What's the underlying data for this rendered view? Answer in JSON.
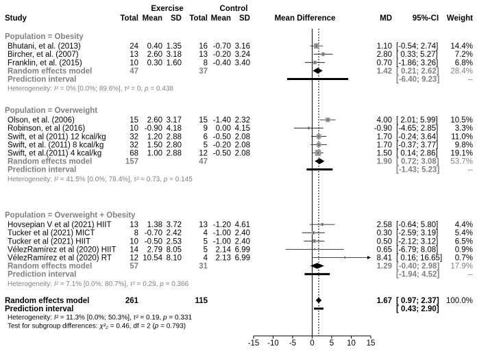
{
  "header": {
    "group_exercise": "Exercise",
    "group_control": "Control",
    "study": "Study",
    "total": "Total",
    "mean": "Mean",
    "sd": "SD",
    "mean_difference": "Mean Difference",
    "md": "MD",
    "ci": "95%-CI",
    "weight": "Weight"
  },
  "chart_data": {
    "type": "forest",
    "x_axis": {
      "ticks": [
        -15,
        -10,
        -5,
        0,
        5,
        10,
        15
      ],
      "xlim": [
        -15,
        15
      ],
      "null_line": 0,
      "overall_line": 1.67
    },
    "groups": [
      {
        "label": "Population = Obesity",
        "studies": [
          {
            "study": "Bhutani, et al. (2013)",
            "e_total": "24",
            "e_mean": "0.40",
            "e_sd": "1.35",
            "c_total": "16",
            "c_mean": "-0.70",
            "c_sd": "3.16",
            "md": 1.1,
            "lower": -0.54,
            "upper": 2.74,
            "md_text": "1.10",
            "ci_text": "[-0.54;  2.74]",
            "weight": "14.4%"
          },
          {
            "study": "Bircher, et al. (2007)",
            "e_total": "13",
            "e_mean": "2.60",
            "e_sd": "3.18",
            "c_total": "13",
            "c_mean": "-0.20",
            "c_sd": "3.24",
            "md": 2.8,
            "lower": 0.33,
            "upper": 5.27,
            "md_text": "2.80",
            "ci_text": "[ 0.33;  5.27]",
            "weight": "7.2%"
          },
          {
            "study": "Franklin, et al. (2015)",
            "e_total": "10",
            "e_mean": "0.30",
            "e_sd": "1.60",
            "c_total": "8",
            "c_mean": "-0.40",
            "c_sd": "3.40",
            "md": 0.7,
            "lower": -1.86,
            "upper": 3.26,
            "md_text": "0.70",
            "ci_text": "[-1.86;  3.26]",
            "weight": "6.8%"
          }
        ],
        "random": {
          "label": "Random effects model",
          "e_total": "47",
          "c_total": "37",
          "md": 1.42,
          "lower": 0.21,
          "upper": 2.62,
          "md_text": "1.42",
          "ci_text": "[ 0.21;  2.62]",
          "weight": "28.4%"
        },
        "prediction": {
          "label": "Prediction interval",
          "lower": -6.4,
          "upper": 9.23,
          "ci_text": "[-6.40;  9.23]",
          "weight": "--"
        },
        "heterogeneity": "Heterogeneity: I² = 0% [0.0%; 89.6%], τ² = 0, p = 0.438"
      },
      {
        "label": "Population = Overweight",
        "studies": [
          {
            "study": "Olson, et al. (2006)",
            "e_total": "15",
            "e_mean": "2.60",
            "e_sd": "3.17",
            "c_total": "15",
            "c_mean": "-1.40",
            "c_sd": "2.32",
            "md": 4.0,
            "lower": 2.01,
            "upper": 5.99,
            "md_text": "4.00",
            "ci_text": "[ 2.01;  5.99]",
            "weight": "10.5%"
          },
          {
            "study": "Robinson, et al (2016)",
            "e_total": "10",
            "e_mean": "-0.90",
            "e_sd": "4.18",
            "c_total": "9",
            "c_mean": "0.00",
            "c_sd": "4.15",
            "md": -0.9,
            "lower": -4.65,
            "upper": 2.85,
            "md_text": "-0.90",
            "ci_text": "[-4.65;  2.85]",
            "weight": "3.3%"
          },
          {
            "study": "Swift, et al (2011) 12 kcal/kg",
            "e_total": "32",
            "e_mean": "1.20",
            "e_sd": "2.88",
            "c_total": "6",
            "c_mean": "-0.50",
            "c_sd": "2.08",
            "md": 1.7,
            "lower": -0.24,
            "upper": 3.64,
            "md_text": "1.70",
            "ci_text": "[-0.24;  3.64]",
            "weight": "11.0%"
          },
          {
            "study": "Swift, et al. (2011) 8 kcal/kg",
            "e_total": "32",
            "e_mean": "1.50",
            "e_sd": "2.80",
            "c_total": "5",
            "c_mean": "-0.20",
            "c_sd": "2.08",
            "md": 1.7,
            "lower": -0.37,
            "upper": 3.77,
            "md_text": "1.70",
            "ci_text": "[-0.37;  3.77]",
            "weight": "9.8%"
          },
          {
            "study": "Swift, et al.(2011) 4 kcal/kg",
            "e_total": "68",
            "e_mean": "1.00",
            "e_sd": "2.88",
            "c_total": "12",
            "c_mean": "-0.50",
            "c_sd": "2.08",
            "md": 1.5,
            "lower": 0.14,
            "upper": 2.86,
            "md_text": "1.50",
            "ci_text": "[ 0.14;  2.86]",
            "weight": "19.1%"
          }
        ],
        "random": {
          "label": "Random effects model",
          "e_total": "157",
          "c_total": "47",
          "md": 1.9,
          "lower": 0.72,
          "upper": 3.08,
          "md_text": "1.90",
          "ci_text": "[ 0.72;  3.08]",
          "weight": "53.7%"
        },
        "prediction": {
          "label": "Prediction interval",
          "lower": -1.43,
          "upper": 5.23,
          "ci_text": "[-1.43;  5.23]",
          "weight": "--"
        },
        "heterogeneity": "Heterogeneity: I² = 41.5% [0.0%; 78.4%], τ² = 0.73, p = 0.145"
      },
      {
        "label": "Population = Overweight + Obesity",
        "studies": [
          {
            "study": "Hovsepian V et al (2021) HIIT",
            "e_total": "13",
            "e_mean": "1.38",
            "e_sd": "3.72",
            "c_total": "13",
            "c_mean": "-1.20",
            "c_sd": "4.61",
            "md": 2.58,
            "lower": -0.64,
            "upper": 5.8,
            "md_text": "2.58",
            "ci_text": "[-0.64;  5.80]",
            "weight": "4.4%"
          },
          {
            "study": "Tucker et al  (2021) MICT",
            "e_total": "8",
            "e_mean": "-0.70",
            "e_sd": "2.42",
            "c_total": "4",
            "c_mean": "-1.00",
            "c_sd": "2.40",
            "md": 0.3,
            "lower": -2.59,
            "upper": 3.19,
            "md_text": "0.30",
            "ci_text": "[-2.59;  3.19]",
            "weight": "5.4%"
          },
          {
            "study": "Tucker et al (2021) HIIT",
            "e_total": "10",
            "e_mean": "-0.50",
            "e_sd": "2.53",
            "c_total": "5",
            "c_mean": "-1.00",
            "c_sd": "2.40",
            "md": 0.5,
            "lower": -2.12,
            "upper": 3.12,
            "md_text": "0.50",
            "ci_text": "[-2.12;  3.12]",
            "weight": "6.5%"
          },
          {
            "study": "VélezRamírez et al (2020) HIIT",
            "e_total": "14",
            "e_mean": "2.79",
            "e_sd": "8.05",
            "c_total": "5",
            "c_mean": "2.14",
            "c_sd": "6.99",
            "md": 0.65,
            "lower": -6.79,
            "upper": 8.08,
            "md_text": "0.65",
            "ci_text": "[-6.79;  8.08]",
            "weight": "0.9%"
          },
          {
            "study": "VélezRamírez et al (2020) RT",
            "e_total": "12",
            "e_mean": "10.54",
            "e_sd": "8.10",
            "c_total": "4",
            "c_mean": "2.13",
            "c_sd": "6.99",
            "md": 8.41,
            "lower": 0.16,
            "upper": 16.65,
            "md_text": "8.41",
            "ci_text": "[ 0.16; 16.65]",
            "weight": "0.7%"
          }
        ],
        "random": {
          "label": "Random effects model",
          "e_total": "57",
          "c_total": "31",
          "md": 1.29,
          "lower": -0.4,
          "upper": 2.98,
          "md_text": "1.29",
          "ci_text": "[-0.40;  2.98]",
          "weight": "17.9%"
        },
        "prediction": {
          "label": "Prediction interval",
          "lower": -1.94,
          "upper": 4.52,
          "ci_text": "[-1.94;  4.52]",
          "weight": "--"
        },
        "heterogeneity": "Heterogeneity: I² = 7.1% [0.0%; 80.7%], τ² = 0.29, p = 0.366"
      }
    ],
    "overall": {
      "random": {
        "label": "Random effects model",
        "e_total": "261",
        "c_total": "115",
        "md": 1.67,
        "lower": 0.97,
        "upper": 2.37,
        "md_text": "1.67",
        "ci_text": "[ 0.97;  2.37]",
        "weight": "100.0%"
      },
      "prediction": {
        "label": "Prediction interval",
        "lower": 0.43,
        "upper": 2.9,
        "ci_text": "[ 0.43;  2.90]"
      },
      "heterogeneity": "Heterogeneity: I² = 11.3% [0.0%; 50.3%], τ² = 0.19, p = 0.331",
      "subgroup_test": "Test for subgroup differences: χ²₂ = 0.46, df = 2 (p = 0.793)"
    }
  },
  "colors": {
    "text": "#000000",
    "subgroup": "#808080",
    "square": "#9a9a9a",
    "line": "#000000"
  }
}
